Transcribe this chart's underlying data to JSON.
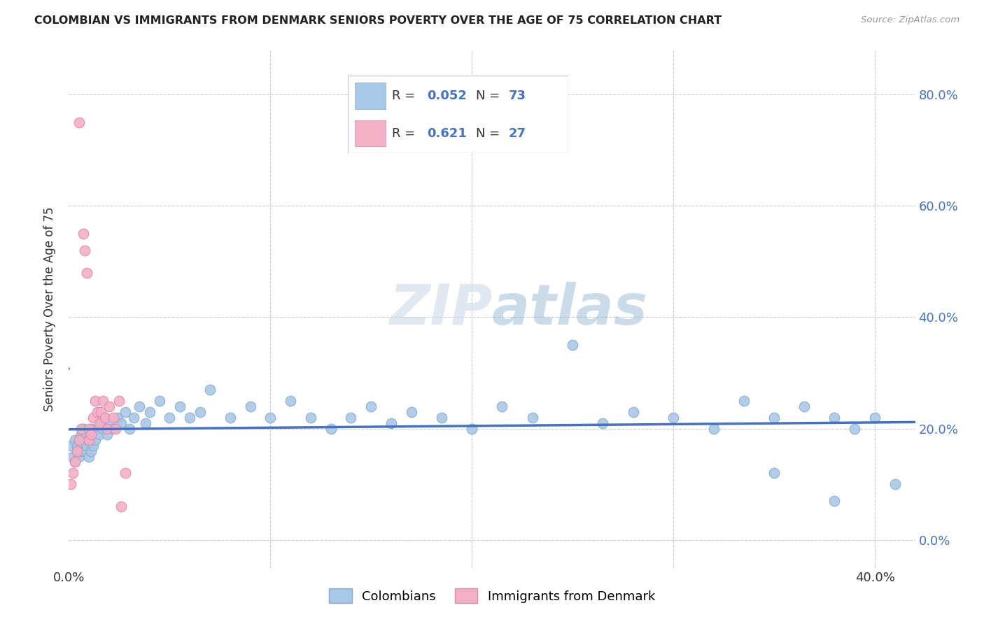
{
  "title": "COLOMBIAN VS IMMIGRANTS FROM DENMARK SENIORS POVERTY OVER THE AGE OF 75 CORRELATION CHART",
  "source": "Source: ZipAtlas.com",
  "ylabel": "Seniors Poverty Over the Age of 75",
  "xlim": [
    0.0,
    0.42
  ],
  "ylim": [
    -0.05,
    0.88
  ],
  "yticks": [
    0.0,
    0.2,
    0.4,
    0.6,
    0.8
  ],
  "xticks": [
    0.0,
    0.1,
    0.2,
    0.3,
    0.4
  ],
  "colombian_R": 0.052,
  "colombian_N": 73,
  "denmark_R": 0.621,
  "denmark_N": 27,
  "colombian_color": "#a8c8e8",
  "denmark_color": "#f4b0c4",
  "colombian_line_color": "#4472c4",
  "denmark_line_color": "#d4607a",
  "colombian_x": [
    0.001,
    0.002,
    0.003,
    0.003,
    0.004,
    0.004,
    0.005,
    0.005,
    0.006,
    0.006,
    0.007,
    0.007,
    0.008,
    0.008,
    0.009,
    0.009,
    0.01,
    0.01,
    0.011,
    0.011,
    0.012,
    0.012,
    0.013,
    0.014,
    0.015,
    0.016,
    0.017,
    0.018,
    0.019,
    0.02,
    0.022,
    0.024,
    0.026,
    0.028,
    0.03,
    0.032,
    0.035,
    0.038,
    0.04,
    0.045,
    0.05,
    0.055,
    0.06,
    0.065,
    0.07,
    0.08,
    0.09,
    0.1,
    0.11,
    0.12,
    0.13,
    0.14,
    0.15,
    0.16,
    0.17,
    0.185,
    0.2,
    0.215,
    0.23,
    0.25,
    0.265,
    0.28,
    0.3,
    0.32,
    0.335,
    0.35,
    0.365,
    0.38,
    0.39,
    0.4,
    0.41,
    0.38,
    0.35
  ],
  "colombian_y": [
    0.17,
    0.15,
    0.14,
    0.18,
    0.16,
    0.17,
    0.15,
    0.18,
    0.16,
    0.19,
    0.17,
    0.2,
    0.16,
    0.18,
    0.17,
    0.19,
    0.15,
    0.18,
    0.16,
    0.2,
    0.17,
    0.19,
    0.18,
    0.2,
    0.19,
    0.21,
    0.2,
    0.22,
    0.19,
    0.21,
    0.2,
    0.22,
    0.21,
    0.23,
    0.2,
    0.22,
    0.24,
    0.21,
    0.23,
    0.25,
    0.22,
    0.24,
    0.22,
    0.23,
    0.27,
    0.22,
    0.24,
    0.22,
    0.25,
    0.22,
    0.2,
    0.22,
    0.24,
    0.21,
    0.23,
    0.22,
    0.2,
    0.24,
    0.22,
    0.35,
    0.21,
    0.23,
    0.22,
    0.2,
    0.25,
    0.22,
    0.24,
    0.22,
    0.2,
    0.22,
    0.1,
    0.07,
    0.12
  ],
  "denmark_x": [
    0.001,
    0.002,
    0.003,
    0.004,
    0.005,
    0.005,
    0.006,
    0.007,
    0.008,
    0.009,
    0.01,
    0.01,
    0.011,
    0.012,
    0.013,
    0.014,
    0.015,
    0.016,
    0.017,
    0.018,
    0.019,
    0.02,
    0.022,
    0.023,
    0.025,
    0.026,
    0.028
  ],
  "denmark_y": [
    0.1,
    0.12,
    0.14,
    0.16,
    0.75,
    0.18,
    0.2,
    0.55,
    0.52,
    0.48,
    0.18,
    0.2,
    0.19,
    0.22,
    0.25,
    0.23,
    0.21,
    0.23,
    0.25,
    0.22,
    0.2,
    0.24,
    0.22,
    0.2,
    0.25,
    0.06,
    0.12
  ]
}
